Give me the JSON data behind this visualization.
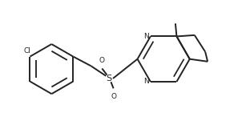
{
  "bg_color": "#ffffff",
  "line_color": "#222222",
  "line_width": 1.4,
  "text_color": "#222222",
  "font_size": 6.5,
  "figsize": [
    3.12,
    1.66
  ],
  "dpi": 100,
  "xlim": [
    0,
    10
  ],
  "ylim": [
    0,
    5.3
  ]
}
